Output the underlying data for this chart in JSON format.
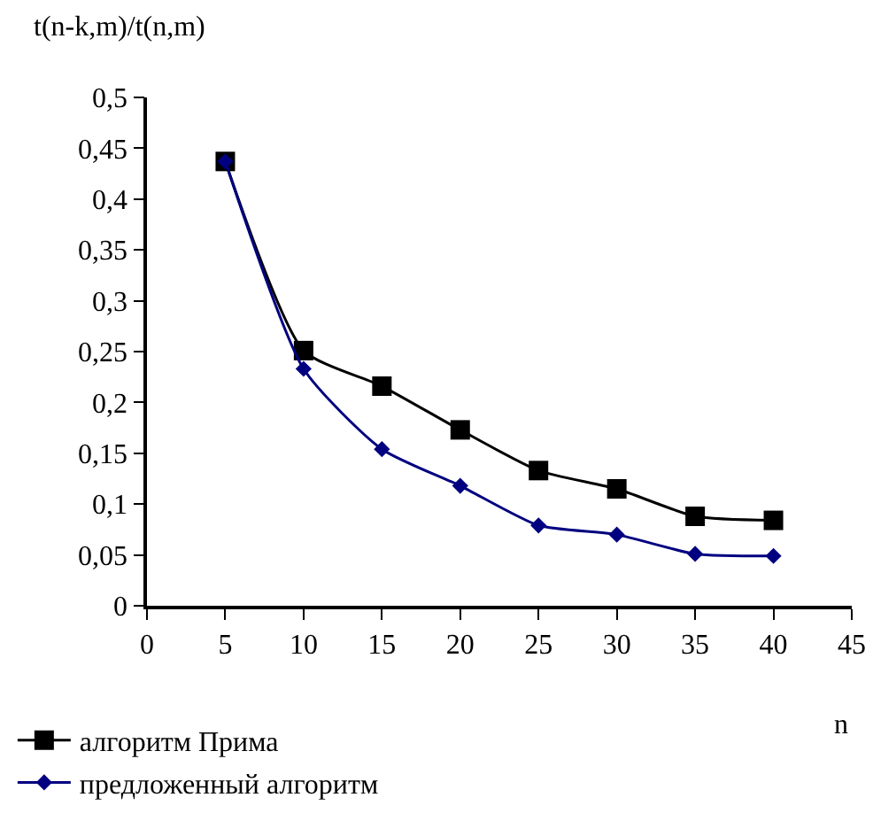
{
  "chart_data": {
    "type": "line",
    "xlabel": "n",
    "ylabel": "t(n-k,m)/t(n,m)",
    "x": [
      5,
      10,
      15,
      20,
      25,
      30,
      35,
      40
    ],
    "series": [
      {
        "name": "алгоритм Прима",
        "color": "#000000",
        "marker": "square",
        "values": [
          0.437,
          0.251,
          0.216,
          0.173,
          0.133,
          0.115,
          0.088,
          0.084
        ]
      },
      {
        "name": "предложенный алгоритм",
        "color": "#000080",
        "marker": "diamond",
        "values": [
          0.437,
          0.233,
          0.154,
          0.118,
          0.079,
          0.07,
          0.051,
          0.049
        ]
      }
    ],
    "xlim": [
      0,
      45
    ],
    "xticks": [
      0,
      5,
      10,
      15,
      20,
      25,
      30,
      35,
      40,
      45
    ],
    "ylim": [
      0,
      0.5
    ],
    "yticks": [
      0,
      {
        "value": 0.05,
        "label": "0,05"
      },
      {
        "value": 0.1,
        "label": "0,1"
      },
      {
        "value": 0.15,
        "label": "0,15"
      },
      {
        "value": 0.2,
        "label": "0,2"
      },
      {
        "value": 0.25,
        "label": "0,25"
      },
      {
        "value": 0.3,
        "label": "0,3"
      },
      {
        "value": 0.35,
        "label": "0,35"
      },
      {
        "value": 0.4,
        "label": "0,4"
      },
      {
        "value": 0.45,
        "label": "0,45"
      },
      {
        "value": 0.5,
        "label": "0,5"
      }
    ],
    "grid": false,
    "legend": "bottom left",
    "line_style": "solid"
  }
}
